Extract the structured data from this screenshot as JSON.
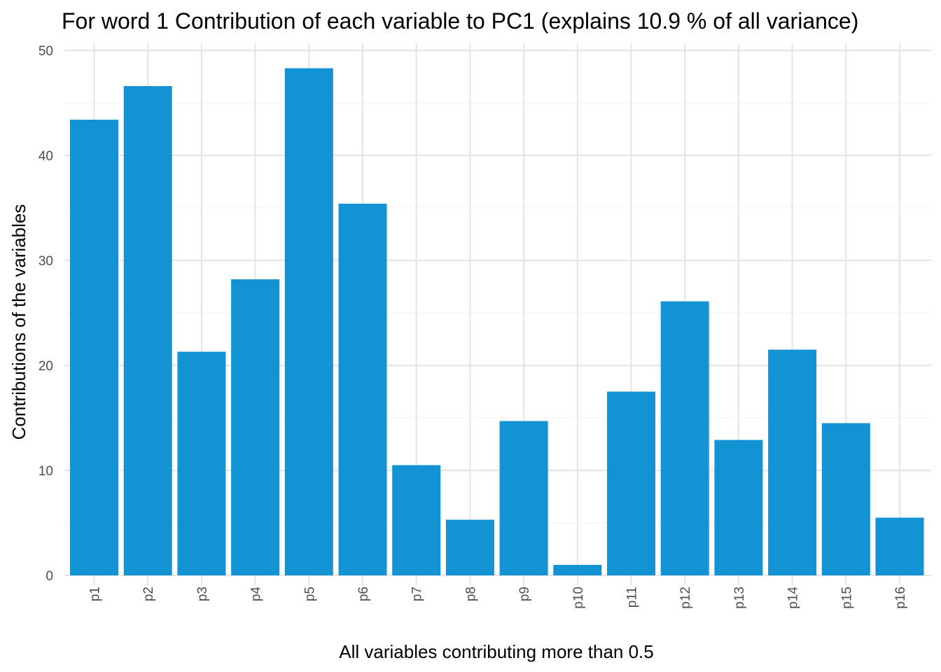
{
  "colors": {
    "bar": "#1392D4",
    "background": "#ffffff",
    "grid": "#e6e6e6"
  },
  "chart_data": {
    "type": "bar",
    "title": "For word 1 Contribution of each variable to PC1 (explains 10.9 % of all variance)",
    "xlabel": "All variables contributing more than 0.5",
    "ylabel": "Contributions of the variables",
    "categories": [
      "p1",
      "p2",
      "p3",
      "p4",
      "p5",
      "p6",
      "p7",
      "p8",
      "p9",
      "p10",
      "p11",
      "p12",
      "p13",
      "p14",
      "p15",
      "p16"
    ],
    "values": [
      43.4,
      46.6,
      21.3,
      28.2,
      48.3,
      35.4,
      10.5,
      5.3,
      14.7,
      1.0,
      17.5,
      26.1,
      12.9,
      21.5,
      14.5,
      5.5
    ],
    "ylim": [
      0,
      50
    ],
    "yticks": [
      0,
      10,
      20,
      30,
      40,
      50
    ],
    "grid": true
  }
}
